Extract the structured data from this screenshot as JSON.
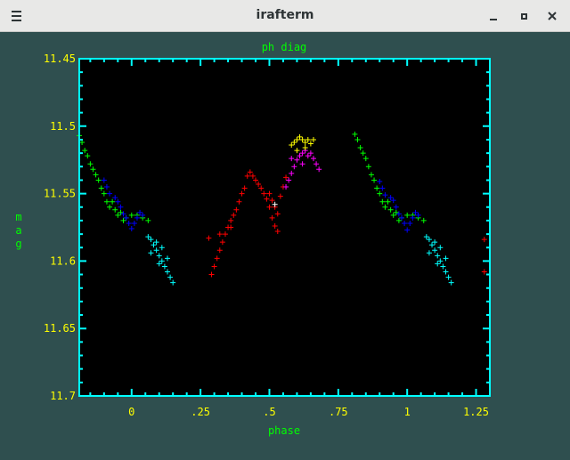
{
  "window": {
    "title": "irafterm",
    "menu_icon": "hamburger-menu-icon",
    "minimize_icon": "minimize-icon",
    "maximize_icon": "maximize-icon",
    "close_icon": "close-icon"
  },
  "colors": {
    "background": "#2f4f4f",
    "frame": "#00ffff",
    "tick_labels": "#ffff00",
    "axis_titles": "#00ff00",
    "plot_bg": "#000000"
  },
  "chart_data": {
    "type": "scatter",
    "title": "ph diag",
    "xlabel": "phase",
    "ylabel": "mag",
    "xlim": [
      -0.19,
      1.3
    ],
    "ylim": [
      11.7,
      11.45
    ],
    "y_inverted": true,
    "grid": false,
    "marker": "+",
    "x_ticks": [
      0,
      0.25,
      0.5,
      0.75,
      1,
      1.25
    ],
    "x_tick_labels": [
      "0",
      ".25",
      ".5",
      ".75",
      "1",
      "1.25"
    ],
    "y_ticks": [
      11.45,
      11.5,
      11.55,
      11.6,
      11.65,
      11.7
    ],
    "y_tick_labels": [
      "11.45",
      "11.5",
      "11.55",
      "11.6",
      "11.65",
      "11.7"
    ],
    "series": [
      {
        "color": "#00ff00",
        "points": [
          [
            -0.19,
            11.507
          ],
          [
            -0.18,
            11.512
          ],
          [
            -0.17,
            11.518
          ],
          [
            -0.16,
            11.522
          ],
          [
            -0.15,
            11.528
          ],
          [
            -0.14,
            11.532
          ],
          [
            -0.13,
            11.536
          ],
          [
            -0.12,
            11.54
          ],
          [
            -0.11,
            11.546
          ],
          [
            -0.1,
            11.55
          ],
          [
            -0.09,
            11.556
          ],
          [
            -0.08,
            11.56
          ],
          [
            -0.07,
            11.556
          ],
          [
            -0.06,
            11.562
          ],
          [
            -0.05,
            11.566
          ],
          [
            -0.04,
            11.564
          ],
          [
            -0.03,
            11.57
          ],
          [
            -0.02,
            11.568
          ],
          [
            0.0,
            11.566
          ],
          [
            0.02,
            11.566
          ],
          [
            0.04,
            11.568
          ],
          [
            0.06,
            11.57
          ],
          [
            0.81,
            11.506
          ],
          [
            0.82,
            11.51
          ],
          [
            0.83,
            11.516
          ],
          [
            0.84,
            11.52
          ],
          [
            0.85,
            11.524
          ],
          [
            0.86,
            11.53
          ],
          [
            0.87,
            11.536
          ],
          [
            0.88,
            11.54
          ],
          [
            0.89,
            11.546
          ],
          [
            0.9,
            11.55
          ],
          [
            0.91,
            11.556
          ],
          [
            0.92,
            11.56
          ],
          [
            0.93,
            11.556
          ],
          [
            0.94,
            11.562
          ],
          [
            0.95,
            11.566
          ],
          [
            0.96,
            11.564
          ],
          [
            0.97,
            11.57
          ],
          [
            0.98,
            11.568
          ],
          [
            1.0,
            11.566
          ],
          [
            1.02,
            11.566
          ],
          [
            1.04,
            11.568
          ],
          [
            1.06,
            11.57
          ]
        ]
      },
      {
        "color": "#0000ff",
        "points": [
          [
            -0.1,
            11.54
          ],
          [
            -0.09,
            11.545
          ],
          [
            -0.08,
            11.55
          ],
          [
            -0.06,
            11.553
          ],
          [
            -0.05,
            11.556
          ],
          [
            -0.04,
            11.56
          ],
          [
            -0.03,
            11.565
          ],
          [
            -0.02,
            11.568
          ],
          [
            -0.01,
            11.572
          ],
          [
            0.0,
            11.576
          ],
          [
            0.01,
            11.572
          ],
          [
            0.02,
            11.568
          ],
          [
            0.03,
            11.564
          ],
          [
            0.04,
            11.566
          ],
          [
            0.9,
            11.541
          ],
          [
            0.91,
            11.546
          ],
          [
            0.92,
            11.551
          ],
          [
            0.94,
            11.553
          ],
          [
            0.95,
            11.555
          ],
          [
            0.96,
            11.56
          ],
          [
            0.97,
            11.565
          ],
          [
            0.98,
            11.568
          ],
          [
            0.99,
            11.572
          ],
          [
            1.0,
            11.577
          ],
          [
            1.01,
            11.572
          ],
          [
            1.02,
            11.568
          ],
          [
            1.03,
            11.564
          ],
          [
            1.04,
            11.566
          ]
        ]
      },
      {
        "color": "#00ffff",
        "points": [
          [
            0.06,
            11.582
          ],
          [
            0.07,
            11.584
          ],
          [
            0.08,
            11.588
          ],
          [
            0.09,
            11.592
          ],
          [
            0.1,
            11.596
          ],
          [
            0.11,
            11.6
          ],
          [
            0.12,
            11.604
          ],
          [
            0.13,
            11.608
          ],
          [
            0.14,
            11.612
          ],
          [
            0.15,
            11.616
          ],
          [
            0.09,
            11.586
          ],
          [
            0.11,
            11.59
          ],
          [
            0.13,
            11.598
          ],
          [
            0.07,
            11.594
          ],
          [
            0.1,
            11.602
          ],
          [
            1.07,
            11.582
          ],
          [
            1.08,
            11.584
          ],
          [
            1.09,
            11.588
          ],
          [
            1.1,
            11.592
          ],
          [
            1.11,
            11.596
          ],
          [
            1.12,
            11.6
          ],
          [
            1.13,
            11.604
          ],
          [
            1.14,
            11.608
          ],
          [
            1.15,
            11.612
          ],
          [
            1.16,
            11.616
          ],
          [
            1.1,
            11.586
          ],
          [
            1.12,
            11.59
          ],
          [
            1.14,
            11.598
          ],
          [
            1.08,
            11.594
          ],
          [
            1.11,
            11.602
          ]
        ]
      },
      {
        "color": "#ff0000",
        "points": [
          [
            0.29,
            11.61
          ],
          [
            0.3,
            11.604
          ],
          [
            0.31,
            11.598
          ],
          [
            0.32,
            11.592
          ],
          [
            0.33,
            11.586
          ],
          [
            0.34,
            11.58
          ],
          [
            0.35,
            11.575
          ],
          [
            0.36,
            11.57
          ],
          [
            0.37,
            11.566
          ],
          [
            0.38,
            11.562
          ],
          [
            0.39,
            11.556
          ],
          [
            0.4,
            11.55
          ],
          [
            0.41,
            11.546
          ],
          [
            0.28,
            11.583
          ],
          [
            0.32,
            11.58
          ],
          [
            0.36,
            11.575
          ],
          [
            0.42,
            11.537
          ],
          [
            0.43,
            11.534
          ],
          [
            0.44,
            11.537
          ],
          [
            0.45,
            11.54
          ],
          [
            0.46,
            11.543
          ],
          [
            0.47,
            11.546
          ],
          [
            0.48,
            11.55
          ],
          [
            0.49,
            11.554
          ],
          [
            0.5,
            11.56
          ],
          [
            0.51,
            11.568
          ],
          [
            0.52,
            11.574
          ],
          [
            0.53,
            11.578
          ],
          [
            0.5,
            11.55
          ],
          [
            0.51,
            11.555
          ],
          [
            0.52,
            11.56
          ],
          [
            0.53,
            11.565
          ],
          [
            0.54,
            11.552
          ],
          [
            0.55,
            11.545
          ],
          [
            0.56,
            11.538
          ],
          [
            1.28,
            11.584
          ],
          [
            1.28,
            11.608
          ]
        ]
      },
      {
        "color": "#ff00ff",
        "points": [
          [
            0.56,
            11.545
          ],
          [
            0.57,
            11.54
          ],
          [
            0.58,
            11.535
          ],
          [
            0.59,
            11.53
          ],
          [
            0.6,
            11.525
          ],
          [
            0.61,
            11.522
          ],
          [
            0.62,
            11.52
          ],
          [
            0.63,
            11.518
          ],
          [
            0.64,
            11.522
          ],
          [
            0.65,
            11.52
          ],
          [
            0.66,
            11.524
          ],
          [
            0.67,
            11.528
          ],
          [
            0.68,
            11.532
          ],
          [
            0.62,
            11.528
          ],
          [
            0.58,
            11.524
          ]
        ]
      },
      {
        "color": "#ffff00",
        "points": [
          [
            0.58,
            11.514
          ],
          [
            0.59,
            11.512
          ],
          [
            0.6,
            11.51
          ],
          [
            0.61,
            11.508
          ],
          [
            0.62,
            11.51
          ],
          [
            0.63,
            11.512
          ],
          [
            0.64,
            11.51
          ],
          [
            0.65,
            11.513
          ],
          [
            0.66,
            11.51
          ],
          [
            0.6,
            11.518
          ],
          [
            0.63,
            11.516
          ]
        ]
      },
      {
        "color": "#ffffff",
        "points": [
          [
            0.52,
            11.558
          ]
        ]
      }
    ]
  }
}
